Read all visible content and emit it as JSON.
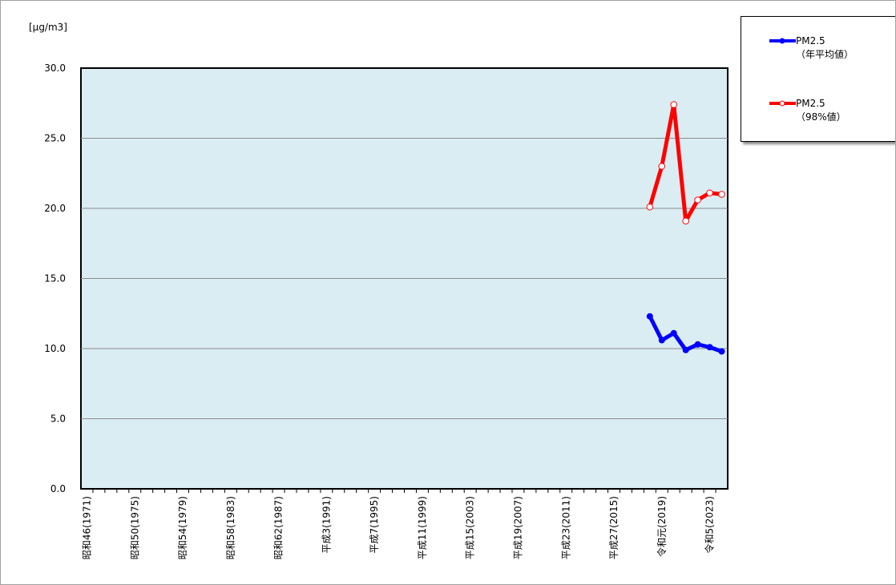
{
  "chart_data": {
    "type": "line",
    "title": "",
    "ylabel": "[μg/m3]",
    "xlabel": "",
    "ylim": [
      0,
      30
    ],
    "yticks": [
      "0.0",
      "5.0",
      "10.0",
      "15.0",
      "20.0",
      "25.0",
      "30.0"
    ],
    "grid": true,
    "legend_position": "right",
    "categories": [
      1971,
      1972,
      1973,
      1974,
      1975,
      1976,
      1977,
      1978,
      1979,
      1980,
      1981,
      1982,
      1983,
      1984,
      1985,
      1986,
      1987,
      1988,
      1989,
      1990,
      1991,
      1992,
      1993,
      1994,
      1995,
      1996,
      1997,
      1998,
      1999,
      2000,
      2001,
      2002,
      2003,
      2004,
      2005,
      2006,
      2007,
      2008,
      2009,
      2010,
      2011,
      2012,
      2013,
      2014,
      2015,
      2016,
      2017,
      2018,
      2019,
      2020,
      2021,
      2022,
      2023,
      2024
    ],
    "xtick_labels": [
      {
        "year": 1971,
        "label": "昭和46(1971)"
      },
      {
        "year": 1975,
        "label": "昭和50(1975)"
      },
      {
        "year": 1979,
        "label": "昭和54(1979)"
      },
      {
        "year": 1983,
        "label": "昭和58(1983)"
      },
      {
        "year": 1987,
        "label": "昭和62(1987)"
      },
      {
        "year": 1991,
        "label": "平成3(1991)"
      },
      {
        "year": 1995,
        "label": "平成7(1995)"
      },
      {
        "year": 1999,
        "label": "平成11(1999)"
      },
      {
        "year": 2003,
        "label": "平成15(2003)"
      },
      {
        "year": 2007,
        "label": "平成19(2007)"
      },
      {
        "year": 2011,
        "label": "平成23(2011)"
      },
      {
        "year": 2015,
        "label": "平成27(2015)"
      },
      {
        "year": 2019,
        "label": "令和元(2019)"
      },
      {
        "year": 2023,
        "label": "令和5(2023)"
      }
    ],
    "series": [
      {
        "name": "PM2.5\n（年平均値）",
        "color": "#0000ff",
        "marker": "filled-circle",
        "x": [
          2018,
          2019,
          2020,
          2021,
          2022,
          2023,
          2024
        ],
        "values": [
          12.3,
          10.6,
          11.1,
          9.9,
          10.3,
          10.1,
          9.8
        ]
      },
      {
        "name": "PM2.5\n（98%値）",
        "color": "#ff0000",
        "marker": "open-circle",
        "x": [
          2018,
          2019,
          2020,
          2021,
          2022,
          2023,
          2024
        ],
        "values": [
          20.1,
          23.0,
          27.4,
          19.1,
          20.6,
          21.1,
          21.0
        ]
      }
    ],
    "plot_background": "#daedf3"
  }
}
